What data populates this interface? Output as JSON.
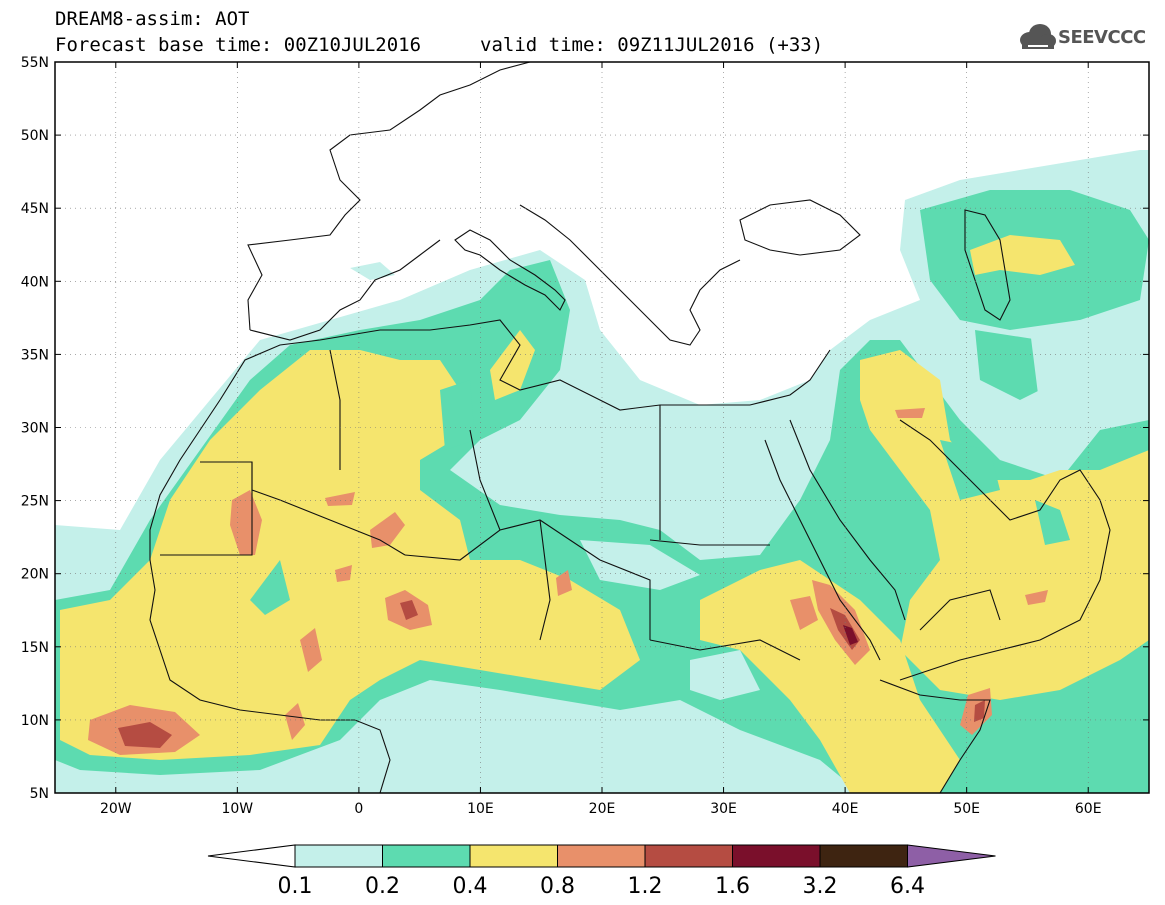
{
  "header": {
    "line1": "DREAM8-assim: AOT",
    "line2": "Forecast base time: 00Z10JUL2016",
    "valid": "valid time: 09Z11JUL2016 (+33)"
  },
  "logo": {
    "text": "SEEVCCC",
    "icon": "cloud-icon"
  },
  "axes": {
    "lat_labels": [
      "55N",
      "50N",
      "45N",
      "40N",
      "35N",
      "30N",
      "25N",
      "20N",
      "15N",
      "10N",
      "5N"
    ],
    "lon_labels": [
      "20W",
      "10W",
      "0",
      "10E",
      "20E",
      "30E",
      "40E",
      "50E",
      "60E"
    ],
    "lat_range": [
      5,
      55
    ],
    "lon_range": [
      -25,
      65
    ]
  },
  "legend": {
    "thresholds": [
      "0.1",
      "0.2",
      "0.4",
      "0.8",
      "1.2",
      "1.6",
      "3.2",
      "6.4"
    ],
    "colors": [
      "#ffffff",
      "#c4f0ea",
      "#5ddbb0",
      "#f5e56e",
      "#e8906a",
      "#b54c42",
      "#7a0f2b",
      "#3e2411",
      "#8e5fa6"
    ]
  },
  "field_colors": {
    "c1": "#c4f0ea",
    "c2": "#5ddbb0",
    "c3": "#f5e56e",
    "c4": "#e8906a",
    "c5": "#b54c42",
    "c6": "#7a0f2b"
  }
}
